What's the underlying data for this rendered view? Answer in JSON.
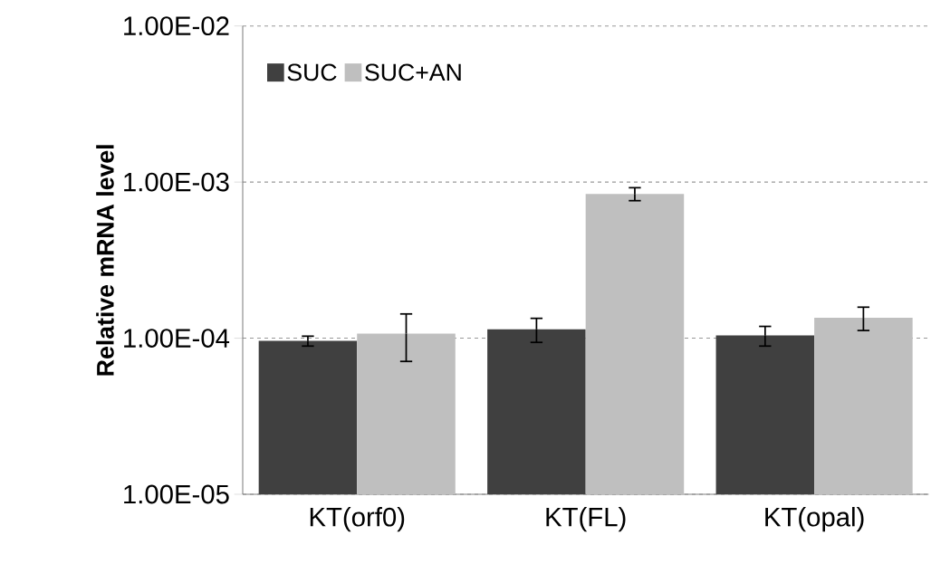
{
  "chart_data": {
    "type": "bar",
    "ylabel": "Relative mRNA level",
    "categories": [
      "KT(orf0)",
      "KT(FL)",
      "KT(opal)"
    ],
    "series": [
      {
        "name": "SUC",
        "color": "#404040",
        "values": [
          9.6e-05,
          0.000114,
          0.000104
        ],
        "errors": [
          7e-06,
          2e-05,
          1.5e-05
        ]
      },
      {
        "name": "SUC+AN",
        "color": "#bfbfbf",
        "values": [
          0.000107,
          0.00084,
          0.000135
        ],
        "errors": [
          3.6e-05,
          8e-05,
          2.3e-05
        ]
      }
    ],
    "log": true,
    "ylim": [
      1e-05,
      0.01
    ],
    "yticks": [
      {
        "value": 1e-05,
        "label": "1.00E-05"
      },
      {
        "value": 0.0001,
        "label": "1.00E-04"
      },
      {
        "value": 0.001,
        "label": "1.00E-03"
      },
      {
        "value": 0.01,
        "label": "1.00E-02"
      }
    ],
    "grid": "y",
    "legend": "top left"
  }
}
